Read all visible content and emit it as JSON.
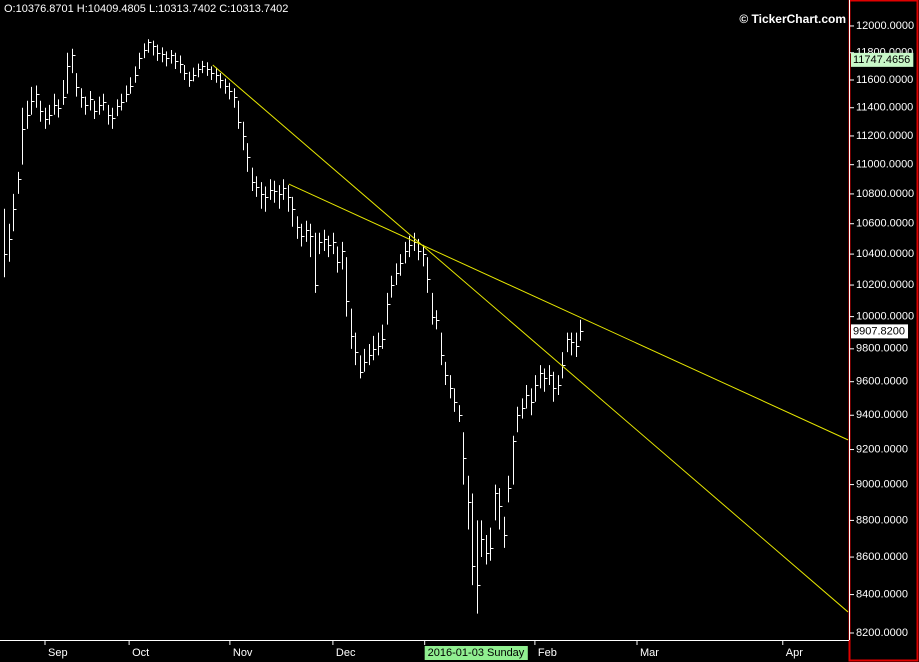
{
  "chart_data": {
    "type": "ohlc",
    "header": "O:10376.8701 H:10409.4805 L:10313.7402 C:10313.7402",
    "watermark": "© TickerChart.com",
    "log": true,
    "xlim": [
      -1,
      187.5
    ],
    "ylim": [
      8164,
      12197
    ],
    "xticks": [
      {
        "value": 9,
        "label": "Sep"
      },
      {
        "value": 27.7,
        "label": "Oct"
      },
      {
        "value": 50.1,
        "label": "Nov"
      },
      {
        "value": 73,
        "label": "Dec"
      },
      {
        "value": 93.4,
        "label": "2016-01-03 Sunday"
      },
      {
        "value": 117.9,
        "label": "Feb"
      },
      {
        "value": 140.6,
        "label": "Mar"
      },
      {
        "value": 173,
        "label": "Apr"
      }
    ],
    "yticks": [
      {
        "value": 12000,
        "label": "12000.0000"
      },
      {
        "value": 11800,
        "label": "11800.0000"
      },
      {
        "value": 11600,
        "label": "11600.0000"
      },
      {
        "value": 11400,
        "label": "11400.0000"
      },
      {
        "value": 11200,
        "label": "11200.0000"
      },
      {
        "value": 11000,
        "label": "11000.0000"
      },
      {
        "value": 10800,
        "label": "10800.0000"
      },
      {
        "value": 10600,
        "label": "10600.0000"
      },
      {
        "value": 10400,
        "label": "10400.0000"
      },
      {
        "value": 10200,
        "label": "10200.0000"
      },
      {
        "value": 10000,
        "label": "10000.0000"
      },
      {
        "value": 9800,
        "label": "9800.0000"
      },
      {
        "value": 9600,
        "label": "9600.0000"
      },
      {
        "value": 9400,
        "label": "9400.0000"
      },
      {
        "value": 9200,
        "label": "9200.0000"
      },
      {
        "value": 9000,
        "label": "9000.0000"
      },
      {
        "value": 8800,
        "label": "8800.0000"
      },
      {
        "value": 8600,
        "label": "8600.0000"
      },
      {
        "value": 8400,
        "label": "8400.0000"
      },
      {
        "value": 8200,
        "label": "8200.0000"
      }
    ],
    "price_labels": [
      {
        "value": 11747.4656,
        "label": "11747.4656",
        "color": "#c8f7c8"
      },
      {
        "value": 9907.82,
        "label": "9907.8200",
        "color": "#ffffff"
      }
    ],
    "trendlines": [
      {
        "color": "#e6e600",
        "x": [
          46.3,
          187.5
        ],
        "y": [
          11710,
          8309
        ]
      },
      {
        "color": "#e6e600",
        "x": [
          63.2,
          187.5
        ],
        "y": [
          10867,
          9256
        ]
      }
    ],
    "series": [
      {
        "color": "#ffffff",
        "high": [
          10700,
          10600,
          10800,
          10950,
          11400,
          11450,
          11550,
          11560,
          11450,
          11400,
          11420,
          11500,
          11460,
          11600,
          11800,
          11830,
          11650,
          11540,
          11480,
          11520,
          11450,
          11480,
          11500,
          11420,
          11400,
          11460,
          11500,
          11560,
          11620,
          11700,
          11800,
          11870,
          11900,
          11890,
          11860,
          11840,
          11810,
          11820,
          11800,
          11780,
          11710,
          11660,
          11690,
          11720,
          11740,
          11730,
          11700,
          11690,
          11650,
          11610,
          11580,
          11540,
          11450,
          11300,
          11150,
          10980,
          10920,
          10880,
          10850,
          10900,
          10890,
          10860,
          10900,
          10860,
          10780,
          10650,
          10600,
          10620,
          10600,
          10540,
          10540,
          10560,
          10520,
          10540,
          10450,
          10480,
          10380,
          10050,
          9900,
          9760,
          9800,
          9830,
          9880,
          9900,
          9950,
          10150,
          10260,
          10340,
          10400,
          10480,
          10520,
          10540,
          10500,
          10460,
          10380,
          10150,
          10040,
          9900,
          9720,
          9640,
          9560,
          9460,
          9300,
          9050,
          8950,
          8800,
          8800,
          8720,
          8760,
          9000,
          8980,
          8820,
          9050,
          9280,
          9450,
          9500,
          9580,
          9560,
          9640,
          9700,
          9680,
          9700,
          9660,
          9640,
          9780,
          9900,
          9900,
          9900,
          9980
        ],
        "low": [
          10250,
          10350,
          10550,
          10800,
          11000,
          11250,
          11350,
          11400,
          11300,
          11250,
          11280,
          11350,
          11330,
          11420,
          11500,
          11650,
          11480,
          11400,
          11350,
          11380,
          11320,
          11350,
          11380,
          11280,
          11250,
          11340,
          11380,
          11440,
          11500,
          11580,
          11680,
          11760,
          11800,
          11780,
          11740,
          11730,
          11700,
          11720,
          11680,
          11650,
          11600,
          11550,
          11590,
          11620,
          11650,
          11630,
          11600,
          11580,
          11540,
          11500,
          11460,
          11400,
          11250,
          11100,
          10950,
          10820,
          10780,
          10700,
          10680,
          10760,
          10740,
          10700,
          10760,
          10680,
          10580,
          10500,
          10450,
          10480,
          10380,
          10150,
          10400,
          10420,
          10380,
          10400,
          10280,
          10300,
          10000,
          9800,
          9700,
          9620,
          9660,
          9700,
          9730,
          9760,
          9800,
          9950,
          10120,
          10200,
          10260,
          10340,
          10380,
          10420,
          10360,
          10320,
          10150,
          9950,
          9920,
          9700,
          9580,
          9500,
          9420,
          9360,
          9000,
          8750,
          8450,
          8300,
          8600,
          8560,
          8580,
          8800,
          8750,
          8650,
          8900,
          9000,
          9300,
          9380,
          9440,
          9400,
          9480,
          9560,
          9540,
          9580,
          9480,
          9520,
          9620,
          9780,
          9760,
          9750,
          9850
        ],
        "close": [
          10400,
          10500,
          10700,
          10900,
          11250,
          11350,
          11450,
          11500,
          11380,
          11320,
          11350,
          11420,
          11400,
          11480,
          11700,
          11780,
          11550,
          11480,
          11420,
          11460,
          11380,
          11420,
          11440,
          11350,
          11330,
          11410,
          11440,
          11500,
          11560,
          11640,
          11760,
          11820,
          11880,
          11850,
          11800,
          11790,
          11760,
          11780,
          11740,
          11720,
          11650,
          11600,
          11640,
          11680,
          11700,
          11680,
          11650,
          11640,
          11600,
          11560,
          11520,
          11480,
          11300,
          11200,
          11050,
          10880,
          10850,
          10800,
          10780,
          10830,
          10820,
          10800,
          10840,
          10780,
          10700,
          10580,
          10520,
          10560,
          10520,
          10200,
          10480,
          10500,
          10460,
          10480,
          10350,
          10420,
          10100,
          9880,
          9780,
          9660,
          9720,
          9760,
          9800,
          9820,
          9860,
          10080,
          10200,
          10280,
          10340,
          10420,
          10460,
          10480,
          10420,
          10400,
          10240,
          10000,
          9980,
          9760,
          9640,
          9560,
          9480,
          9400,
          9150,
          8900,
          8550,
          8450,
          8700,
          8620,
          8650,
          8950,
          8880,
          8720,
          8980,
          9250,
          9400,
          9440,
          9520,
          9480,
          9580,
          9650,
          9620,
          9640,
          9560,
          9580,
          9700,
          9860,
          9840,
          9820,
          9907.82
        ]
      }
    ]
  }
}
